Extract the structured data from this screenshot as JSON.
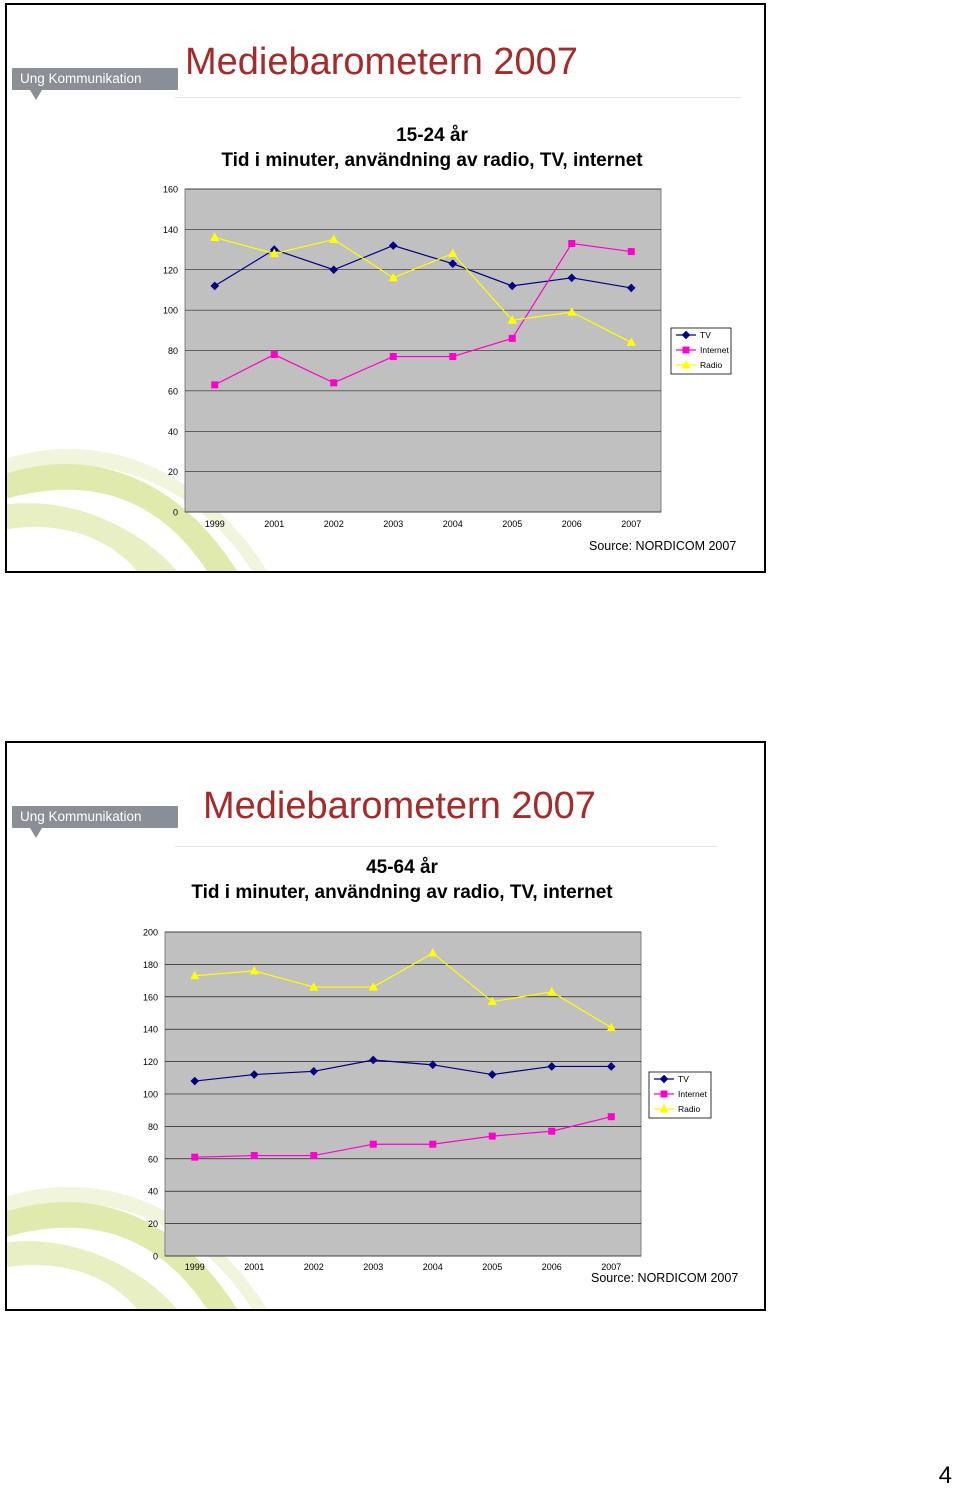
{
  "page": {
    "number": "4"
  },
  "slides": [
    {
      "brand": "Ung Kommunikation",
      "title": "Mediebarometern 2007",
      "subtitle_line1": "15-24 år",
      "subtitle_line2": "Tid i minuter, användning av radio, TV, internet",
      "source": "Source: NORDICOM 2007"
    },
    {
      "brand": "Ung Kommunikation",
      "title": "Mediebarometern 2007",
      "subtitle_line1": "45-64 år",
      "subtitle_line2": "Tid i minuter, användning av radio, TV, internet",
      "source": "Source: NORDICOM 2007"
    }
  ],
  "chart_data": [
    {
      "type": "line",
      "title": "15-24 år",
      "categories": [
        "1999",
        "2001",
        "2002",
        "2003",
        "2004",
        "2005",
        "2006",
        "2007"
      ],
      "ylim": [
        0,
        160
      ],
      "yticks": [
        0,
        20,
        40,
        60,
        80,
        100,
        120,
        140,
        160
      ],
      "grid": true,
      "legend": "right",
      "series": [
        {
          "name": "TV",
          "color": "#000080",
          "marker": "diamond",
          "values": [
            112,
            130,
            120,
            132,
            123,
            112,
            116,
            111
          ]
        },
        {
          "name": "Internet",
          "color": "#ff00cc",
          "marker": "square",
          "values": [
            63,
            78,
            64,
            77,
            77,
            86,
            133,
            129
          ]
        },
        {
          "name": "Radio",
          "color": "#ffff00",
          "marker": "triangle",
          "values": [
            136,
            128,
            135,
            116,
            128,
            95,
            99,
            84
          ]
        }
      ]
    },
    {
      "type": "line",
      "title": "45-64 år",
      "categories": [
        "1999",
        "2001",
        "2002",
        "2003",
        "2004",
        "2005",
        "2006",
        "2007"
      ],
      "ylim": [
        0,
        200
      ],
      "yticks": [
        0,
        20,
        40,
        60,
        80,
        100,
        120,
        140,
        160,
        180,
        200
      ],
      "grid": true,
      "legend": "right",
      "series": [
        {
          "name": "TV",
          "color": "#000080",
          "marker": "diamond",
          "values": [
            108,
            112,
            114,
            121,
            118,
            112,
            117,
            117
          ]
        },
        {
          "name": "Internet",
          "color": "#ff00cc",
          "marker": "square",
          "values": [
            61,
            62,
            62,
            69,
            69,
            74,
            77,
            86
          ]
        },
        {
          "name": "Radio",
          "color": "#ffff00",
          "marker": "triangle",
          "values": [
            173,
            176,
            166,
            166,
            187,
            157,
            163,
            141
          ]
        }
      ]
    }
  ]
}
